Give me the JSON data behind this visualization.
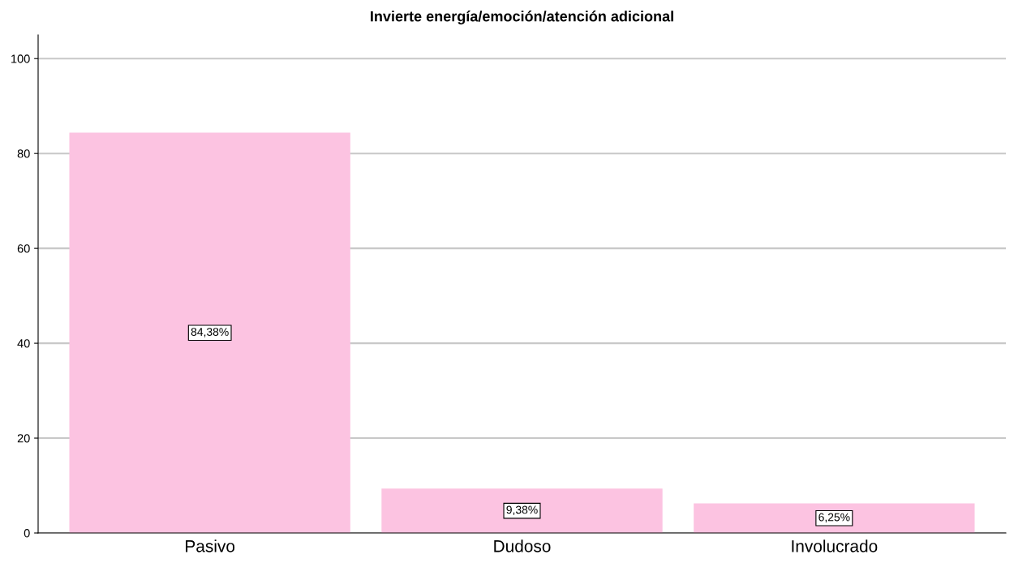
{
  "chart_data": {
    "type": "bar",
    "title": "Invierte energía/emoción/atención adicional",
    "categories": [
      "Pasivo",
      "Dudoso",
      "Involucrado"
    ],
    "values": [
      84.38,
      9.38,
      6.25
    ],
    "value_labels": [
      "84,38%",
      "9,38%",
      "6,25%"
    ],
    "color": "#fcc3e1",
    "ylim": [
      0,
      105
    ],
    "yticks": [
      0,
      20,
      40,
      60,
      80,
      100
    ],
    "grid": "y"
  }
}
